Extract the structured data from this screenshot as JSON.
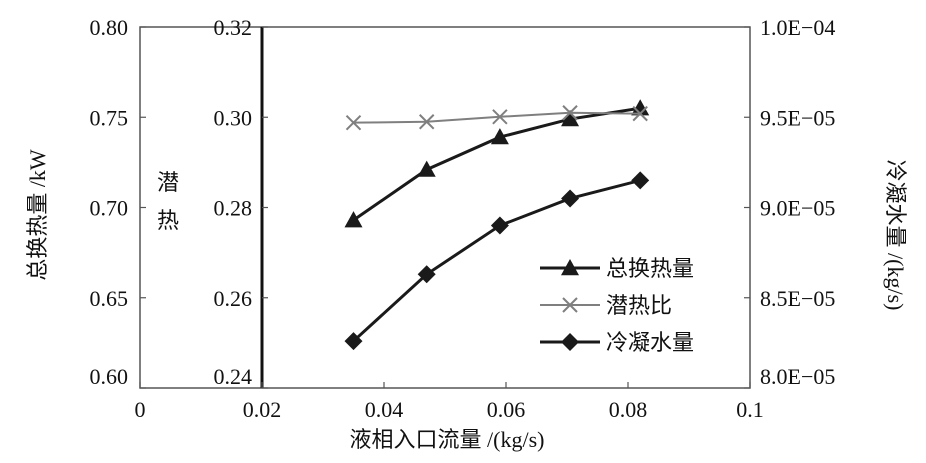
{
  "chart_data": {
    "type": "line",
    "title": "",
    "xlabel": "液相入口流量 /(kg/s)",
    "x_ticks": [
      "0",
      "0.02",
      "0.04",
      "0.06",
      "0.08",
      "0.1"
    ],
    "xlim": [
      0,
      0.1
    ],
    "axes": {
      "left": {
        "label": "总换热量 /kW",
        "ticks": [
          "0.60",
          "0.65",
          "0.70",
          "0.75",
          "0.80"
        ],
        "ylim": [
          0.6,
          0.8
        ]
      },
      "inner": {
        "label": "潜\n热",
        "ticks": [
          "0.24",
          "0.26",
          "0.28",
          "0.30",
          "0.32"
        ],
        "ylim": [
          0.24,
          0.32
        ],
        "at_x": 0.02
      },
      "right": {
        "label": "冷凝水量 /(kg/s)",
        "ticks": [
          "8.0E−05",
          "8.5E−05",
          "9.0E−05",
          "9.5E−05",
          "1.0E−04"
        ],
        "ylim": [
          8e-05,
          0.0001
        ]
      }
    },
    "series": [
      {
        "name": "总换热量",
        "axis": "left",
        "marker": "triangle",
        "color": "#1a1a1a",
        "x": [
          0.035,
          0.047,
          0.059,
          0.0705,
          0.082
        ],
        "y": [
          0.693,
          0.721,
          0.739,
          0.749,
          0.755
        ]
      },
      {
        "name": "潜热比",
        "axis": "inner",
        "marker": "x",
        "color": "#7f7f7f",
        "x": [
          0.035,
          0.047,
          0.059,
          0.0705,
          0.082
        ],
        "y": [
          0.2988,
          0.299,
          0.3001,
          0.301,
          0.3008
        ]
      },
      {
        "name": "冷凝水量",
        "axis": "right",
        "marker": "diamond",
        "color": "#1a1a1a",
        "x": [
          0.035,
          0.047,
          0.059,
          0.0705,
          0.082
        ],
        "y": [
          8.26e-05,
          8.63e-05,
          8.9e-05,
          9.05e-05,
          9.15e-05
        ]
      }
    ],
    "legend_position": "bottom-right",
    "grid": false
  }
}
